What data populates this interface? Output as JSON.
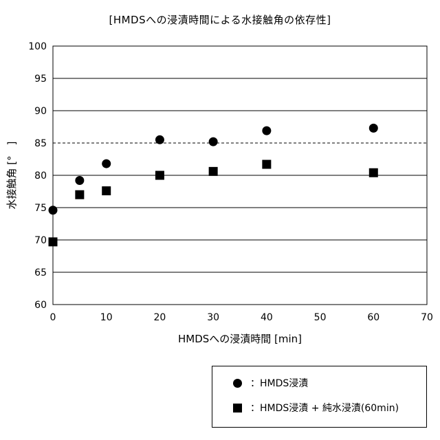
{
  "chart_data": {
    "type": "scatter",
    "title": "[HMDSへの浸漬時間による水接触角の依存性]",
    "xlabel": "HMDSへの浸漬時間 [min]",
    "ylabel": "水接触角 [°　]",
    "xlim": [
      0,
      70
    ],
    "ylim": [
      60,
      100
    ],
    "xticks": [
      0,
      10,
      20,
      30,
      40,
      50,
      60,
      70
    ],
    "yticks": [
      60,
      65,
      70,
      75,
      80,
      85,
      90,
      95,
      100
    ],
    "grid": true,
    "reference_line": {
      "y": 85,
      "style": "dashed"
    },
    "legend_position": "bottom-right",
    "series": [
      {
        "name": "：HMDS浸漬",
        "marker": "circle",
        "color": "#000000",
        "x": [
          0,
          5,
          10,
          20,
          30,
          40,
          60
        ],
        "y": [
          74.6,
          79.2,
          81.8,
          85.5,
          85.2,
          86.9,
          87.3
        ]
      },
      {
        "name": "：HMDS浸漬 + 純水浸漬(60min)",
        "marker": "square",
        "color": "#000000",
        "x": [
          0,
          5,
          10,
          20,
          30,
          40,
          60
        ],
        "y": [
          69.7,
          77.0,
          77.6,
          80.0,
          80.6,
          81.7,
          80.4
        ]
      }
    ]
  }
}
